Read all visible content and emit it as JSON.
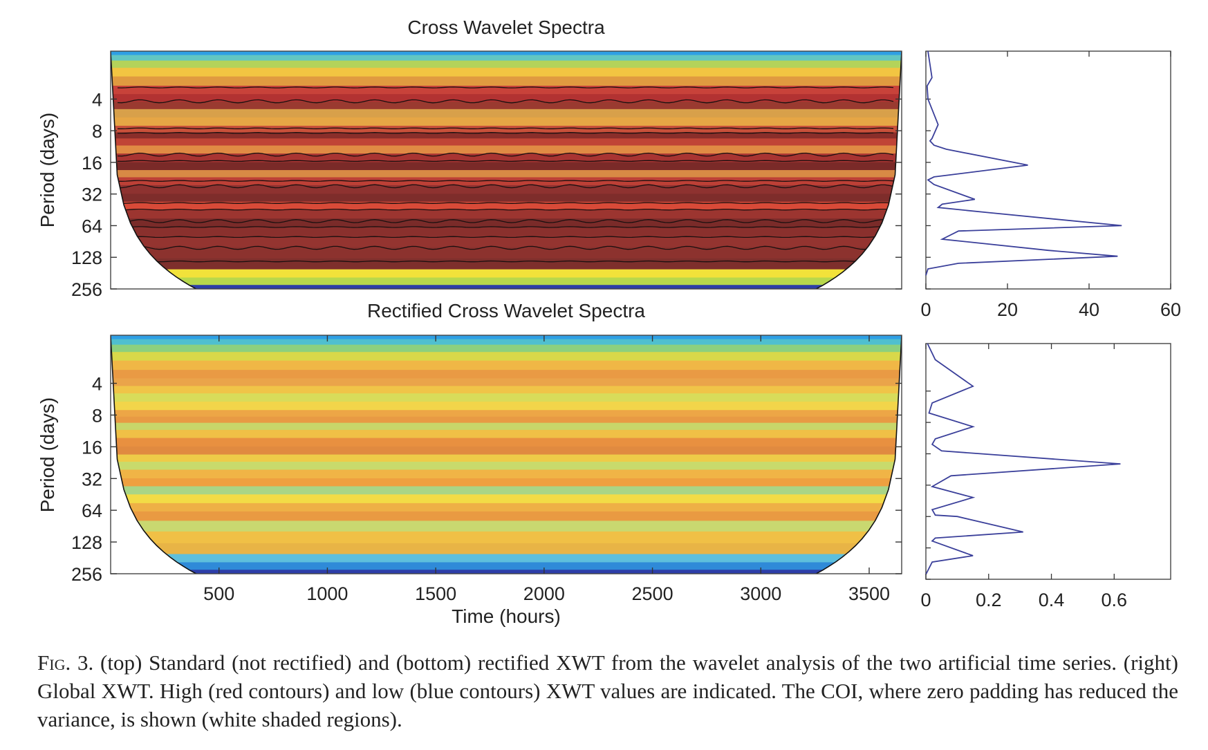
{
  "figure": {
    "caption_label": "Fig. 3.",
    "caption_text": " (top) Standard (not rectified) and (bottom) rectified XWT from the wavelet analysis of the two artificial time series. (right) Global XWT. High (red contours) and low (blue contours) XWT values are indicated. The COI, where zero padding has reduced the variance, is shown (white shaded regions)."
  },
  "chart_data": [
    {
      "type": "heatmap",
      "title": "Cross Wavelet Spectra",
      "xlabel": "",
      "ylabel": "Period (days)",
      "xlim": [
        0,
        3650
      ],
      "y_scale": "log2",
      "ylim": [
        1.4,
        256
      ],
      "y_ticks": [
        "4",
        "8",
        "16",
        "32",
        "64",
        "128",
        "256"
      ],
      "x_ticks": [],
      "bands": [
        {
          "period": 1.45,
          "color": "#2f9fe4"
        },
        {
          "period": 1.6,
          "color": "#62c6c2"
        },
        {
          "period": 1.85,
          "color": "#b4d35a"
        },
        {
          "period": 2.2,
          "color": "#f2c542"
        },
        {
          "period": 2.7,
          "color": "#e09a40"
        },
        {
          "period": 3.3,
          "color": "#c8423a"
        },
        {
          "period": 3.9,
          "color": "#b23232"
        },
        {
          "period": 4.6,
          "color": "#9a3a30"
        },
        {
          "period": 5.4,
          "color": "#d8a04a"
        },
        {
          "period": 6.6,
          "color": "#e6a645"
        },
        {
          "period": 7.8,
          "color": "#c8503a"
        },
        {
          "period": 8.8,
          "color": "#8a2e2a"
        },
        {
          "period": 10.2,
          "color": "#c04436"
        },
        {
          "period": 12.0,
          "color": "#e08a44"
        },
        {
          "period": 14.5,
          "color": "#a83432"
        },
        {
          "period": 17.5,
          "color": "#7a2a28"
        },
        {
          "period": 20.5,
          "color": "#d88a45"
        },
        {
          "period": 24,
          "color": "#bd4036"
        },
        {
          "period": 29,
          "color": "#8e3230"
        },
        {
          "period": 35,
          "color": "#7e2d2b"
        },
        {
          "period": 41,
          "color": "#d84a38"
        },
        {
          "period": 50,
          "color": "#9c3530"
        },
        {
          "period": 60,
          "color": "#7a2b29"
        },
        {
          "period": 72,
          "color": "#8a302d"
        },
        {
          "period": 90,
          "color": "#943430"
        },
        {
          "period": 115,
          "color": "#8c322e"
        },
        {
          "period": 150,
          "color": "#7e2f2c"
        },
        {
          "period": 185,
          "color": "#f2e23a"
        },
        {
          "period": 215,
          "color": "#b8d84c"
        },
        {
          "period": 256,
          "color": "#2d3ea8"
        }
      ],
      "contour_periods": [
        3.1,
        4.2,
        7.6,
        8.4,
        13.5,
        15.5,
        24,
        27,
        39,
        45,
        58,
        66,
        82,
        104,
        140
      ],
      "panel": {
        "type": "line",
        "x": [
          0.5,
          1.5,
          0.3,
          0.5,
          3,
          1.5,
          1,
          2,
          5,
          25,
          2,
          0.5,
          2,
          12,
          4,
          3,
          15,
          48,
          8,
          4,
          30,
          47,
          8,
          0.5,
          0
        ],
        "y": [
          1.4,
          2.5,
          3,
          4,
          7,
          9.5,
          10,
          11,
          12,
          17,
          22,
          23.5,
          26,
          36,
          40,
          43,
          48,
          64,
          72,
          86,
          110,
          125,
          146,
          165,
          190
        ],
        "xlim": [
          0,
          60
        ],
        "x_ticks": [
          "0",
          "20",
          "40",
          "60"
        ],
        "color": "#3a3f9a"
      }
    },
    {
      "type": "heatmap",
      "title": "Rectified Cross Wavelet Spectra",
      "xlabel": "Time (hours)",
      "ylabel": "Period (days)",
      "xlim": [
        0,
        3650
      ],
      "y_scale": "log2",
      "ylim": [
        1.4,
        256
      ],
      "y_ticks": [
        "4",
        "8",
        "16",
        "32",
        "64",
        "128",
        "256"
      ],
      "x_ticks": [
        "500",
        "1000",
        "1500",
        "2000",
        "2500",
        "3000",
        "3500"
      ],
      "x_tick_values": [
        500,
        1000,
        1500,
        2000,
        2500,
        3000,
        3500
      ],
      "bands": [
        {
          "period": 1.45,
          "color": "#2f9fe4"
        },
        {
          "period": 1.6,
          "color": "#4fbfcf"
        },
        {
          "period": 1.85,
          "color": "#8cd07e"
        },
        {
          "period": 2.2,
          "color": "#d9d84a"
        },
        {
          "period": 2.7,
          "color": "#f0b746"
        },
        {
          "period": 3.3,
          "color": "#e99a44"
        },
        {
          "period": 3.9,
          "color": "#eaa44a"
        },
        {
          "period": 4.6,
          "color": "#f0c448"
        },
        {
          "period": 5.4,
          "color": "#d8dc5a"
        },
        {
          "period": 6.6,
          "color": "#f2d54a"
        },
        {
          "period": 7.8,
          "color": "#eda646"
        },
        {
          "period": 8.8,
          "color": "#e89a44"
        },
        {
          "period": 10.2,
          "color": "#c8d66a"
        },
        {
          "period": 12.0,
          "color": "#f0c046"
        },
        {
          "period": 14.5,
          "color": "#e89040"
        },
        {
          "period": 17.5,
          "color": "#e08a40"
        },
        {
          "period": 20.5,
          "color": "#eecb48"
        },
        {
          "period": 24,
          "color": "#c8da6c"
        },
        {
          "period": 29,
          "color": "#f0b446"
        },
        {
          "period": 35,
          "color": "#eea040"
        },
        {
          "period": 41,
          "color": "#a9d586"
        },
        {
          "period": 50,
          "color": "#f2dc46"
        },
        {
          "period": 60,
          "color": "#eeb046"
        },
        {
          "period": 72,
          "color": "#e99a42"
        },
        {
          "period": 90,
          "color": "#c9d870"
        },
        {
          "period": 115,
          "color": "#f0c046"
        },
        {
          "period": 150,
          "color": "#e8b446"
        },
        {
          "period": 185,
          "color": "#5ebfdc"
        },
        {
          "period": 215,
          "color": "#2f8ad8"
        },
        {
          "period": 256,
          "color": "#2d3ea8"
        }
      ],
      "contour_periods": [],
      "panel": {
        "type": "line",
        "x": [
          0.005,
          0.03,
          0.15,
          0.02,
          0.01,
          0.15,
          0.03,
          0.02,
          0.05,
          0.62,
          0.08,
          0.02,
          0.15,
          0.02,
          0.03,
          0.1,
          0.31,
          0.03,
          0.02,
          0.15,
          0.02,
          0
        ],
        "y": [
          1.4,
          2.0,
          3.6,
          5.2,
          6.5,
          8.8,
          11.5,
          13,
          15,
          20,
          26,
          33,
          42,
          55,
          62,
          64,
          90,
          103,
          110,
          152,
          175,
          230
        ],
        "xlim": [
          0,
          0.78
        ],
        "x_ticks": [
          "0",
          "0.2",
          "0.4",
          "0.6"
        ],
        "x_tick_values": [
          0,
          0.2,
          0.4,
          0.6
        ],
        "color": "#3a3f9a"
      }
    }
  ]
}
